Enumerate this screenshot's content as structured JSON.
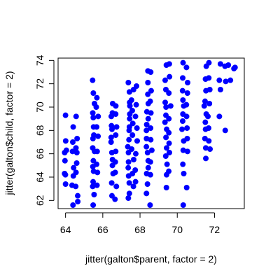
{
  "chart_data": {
    "type": "scatter",
    "title": "",
    "xlabel": "jitter(galton$parent, factor = 2)",
    "ylabel": "jitter(galton$child, factor = 2)",
    "xlim": [
      63.6,
      73.6
    ],
    "ylim": [
      61.3,
      74.2
    ],
    "x_ticks": [
      64,
      66,
      68,
      70,
      72
    ],
    "x_tick_labels": [
      "64",
      "66",
      "68",
      "70",
      "72"
    ],
    "y_ticks": [
      62,
      64,
      66,
      68,
      70,
      72,
      74
    ],
    "y_tick_labels": [
      "62",
      "64",
      "66",
      "68",
      "70",
      "72",
      "74"
    ],
    "point_color": "#0000ff",
    "grid": false,
    "jitter_columns": [
      {
        "x": 64.0,
        "ys": [
          69.3,
          67.1,
          66.1,
          65.4,
          64.2,
          63.4,
          64.3,
          66.3
        ]
      },
      {
        "x": 64.4,
        "ys": [
          68.3,
          67.0,
          66.2,
          64.8,
          64.1,
          63.3,
          61.6
        ]
      },
      {
        "x": 64.6,
        "ys": [
          69.2,
          67.3,
          66.5,
          66.1,
          65.2,
          64.4,
          63.2,
          62.4,
          61.9
        ]
      },
      {
        "x": 65.5,
        "ys": [
          72.3,
          71.2,
          70.3,
          69.5,
          69.1,
          68.3,
          67.6,
          67.3,
          66.5,
          66.2,
          65.4,
          64.9,
          64.5,
          63.6,
          63.2,
          62.5,
          61.6
        ]
      },
      {
        "x": 65.7,
        "ys": [
          70.8,
          70.0,
          69.2,
          68.3,
          67.5,
          66.2,
          65.1,
          64.4,
          63.3
        ]
      },
      {
        "x": 66.5,
        "ys": [
          70.3,
          69.5,
          69.2,
          68.4,
          68.1,
          67.4,
          67.0,
          66.1,
          65.5,
          65.0,
          64.3,
          63.5,
          62.4
        ]
      },
      {
        "x": 66.7,
        "ys": [
          70.1,
          69.4,
          68.3,
          67.6,
          66.2,
          65.3,
          64.4,
          63.2,
          62.1
        ]
      },
      {
        "x": 67.4,
        "ys": [
          72.1,
          71.3,
          70.4,
          70.1,
          69.4,
          69.0,
          68.3,
          68.0,
          67.2,
          66.6,
          66.1,
          65.3,
          64.8,
          64.1,
          63.5,
          62.6,
          62.2
        ]
      },
      {
        "x": 67.6,
        "ys": [
          71.5,
          70.6,
          69.7,
          68.6,
          67.6,
          66.4,
          65.5,
          64.3,
          63.2
        ]
      },
      {
        "x": 67.8,
        "ys": [
          71.8,
          70.2,
          69.2,
          68.2,
          67.1,
          66.0,
          64.6,
          63.6
        ]
      },
      {
        "x": 68.4,
        "ys": [
          73.1,
          72.1,
          71.1,
          70.3,
          69.6,
          69.0,
          68.5,
          68.0,
          67.3,
          66.6,
          66.1,
          65.4,
          64.8,
          64.3,
          63.4,
          62.6
        ]
      },
      {
        "x": 68.6,
        "ys": [
          73.0,
          71.4,
          70.5,
          69.5,
          68.2,
          67.2,
          66.3,
          65.3,
          64.2,
          61.6
        ]
      },
      {
        "x": 69.4,
        "ys": [
          73.6,
          72.3,
          71.5,
          70.4,
          70.0,
          69.3,
          68.7,
          68.1,
          67.4,
          66.5,
          65.8,
          65.1,
          64.2,
          63.1
        ]
      },
      {
        "x": 69.6,
        "ys": [
          73.7,
          72.6,
          71.2,
          70.1,
          69.0,
          67.8,
          66.9,
          66.1,
          64.5
        ]
      },
      {
        "x": 70.3,
        "ys": [
          73.8,
          72.5,
          71.4,
          70.6,
          70.1,
          69.4,
          68.8,
          68.1,
          67.1,
          66.3,
          65.1,
          64.3,
          61.6
        ]
      },
      {
        "x": 70.5,
        "ys": [
          73.4,
          72.1,
          71.2,
          70.2,
          69.2,
          68.2,
          67.3,
          66.2,
          63.1
        ]
      },
      {
        "x": 71.5,
        "ys": [
          73.5,
          72.4,
          71.4,
          70.5,
          70.1,
          69.4,
          68.7,
          68.1,
          67.3,
          66.5,
          65.6
        ]
      },
      {
        "x": 71.7,
        "ys": [
          73.8,
          72.5,
          71.5,
          70.3,
          69.2,
          68.2,
          67.1,
          66.4
        ]
      },
      {
        "x": 72.3,
        "ys": [
          73.7,
          72.3,
          71.5,
          69.2
        ]
      },
      {
        "x": 72.6,
        "ys": [
          73.5,
          72.2,
          68.0
        ]
      },
      {
        "x": 72.8,
        "ys": [
          73.6,
          72.3
        ]
      },
      {
        "x": 73.1,
        "ys": [
          73.4,
          73.3
        ]
      }
    ]
  }
}
